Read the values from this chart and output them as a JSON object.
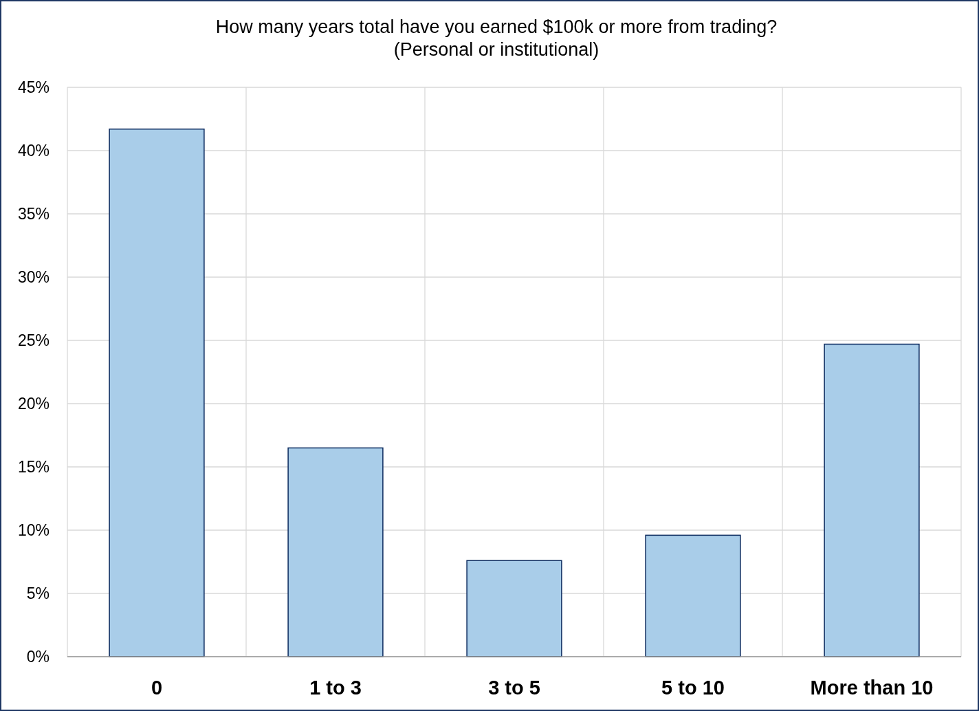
{
  "chart_data": {
    "type": "bar",
    "title": "How many years total have you earned $100k or more from trading?\n(Personal or institutional)",
    "categories": [
      "0",
      "1 to 3",
      "3 to 5",
      "5 to 10",
      "More than 10"
    ],
    "values": [
      41.7,
      16.5,
      7.6,
      9.6,
      24.7
    ],
    "color": "#a9cde9",
    "ylim": [
      0,
      45
    ],
    "yticks": [
      {
        "value": 0,
        "label": "0%"
      },
      {
        "value": 5,
        "label": "5%"
      },
      {
        "value": 10,
        "label": "10%"
      },
      {
        "value": 15,
        "label": "15%"
      },
      {
        "value": 20,
        "label": "20%"
      },
      {
        "value": 25,
        "label": "25%"
      },
      {
        "value": 30,
        "label": "30%"
      },
      {
        "value": 35,
        "label": "35%"
      },
      {
        "value": 40,
        "label": "40%"
      },
      {
        "value": 45,
        "label": "45%"
      }
    ],
    "grid": true
  }
}
